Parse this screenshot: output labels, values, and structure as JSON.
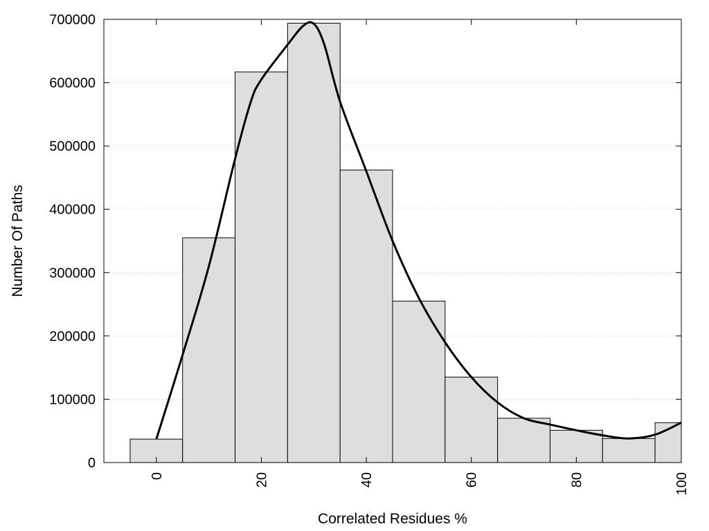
{
  "chart_data": {
    "type": "bar",
    "xlabel": "Correlated Residues %",
    "ylabel": "Number Of Paths",
    "xlim": [
      -10,
      100
    ],
    "ylim": [
      0,
      700000
    ],
    "x_ticks": [
      0,
      20,
      40,
      60,
      80,
      100
    ],
    "y_ticks": [
      0,
      100000,
      200000,
      300000,
      400000,
      500000,
      600000,
      700000
    ],
    "y_grid": "dotted",
    "bin_width": 10,
    "bins": [
      {
        "x": 0,
        "value": 37000
      },
      {
        "x": 10,
        "value": 355000
      },
      {
        "x": 20,
        "value": 617000
      },
      {
        "x": 30,
        "value": 694000
      },
      {
        "x": 40,
        "value": 462000
      },
      {
        "x": 50,
        "value": 255000
      },
      {
        "x": 60,
        "value": 135000
      },
      {
        "x": 70,
        "value": 70000
      },
      {
        "x": 80,
        "value": 51000
      },
      {
        "x": 90,
        "value": 38000
      },
      {
        "x": 100,
        "value": 63000
      }
    ],
    "curve": {
      "type": "line",
      "points": [
        [
          0,
          37000
        ],
        [
          5,
          170000
        ],
        [
          10,
          310000
        ],
        [
          15,
          480000
        ],
        [
          18,
          570000
        ],
        [
          20,
          605000
        ],
        [
          25,
          660000
        ],
        [
          28,
          690000
        ],
        [
          30,
          693000
        ],
        [
          32,
          660000
        ],
        [
          35,
          570000
        ],
        [
          40,
          460000
        ],
        [
          45,
          350000
        ],
        [
          50,
          260000
        ],
        [
          55,
          190000
        ],
        [
          60,
          135000
        ],
        [
          65,
          95000
        ],
        [
          70,
          70000
        ],
        [
          75,
          60000
        ],
        [
          80,
          51000
        ],
        [
          85,
          43000
        ],
        [
          90,
          38000
        ],
        [
          95,
          44000
        ],
        [
          100,
          63000
        ]
      ]
    },
    "colors": {
      "bar_fill": "#dedede",
      "bar_stroke": "#000000",
      "curve": "#000000"
    }
  }
}
